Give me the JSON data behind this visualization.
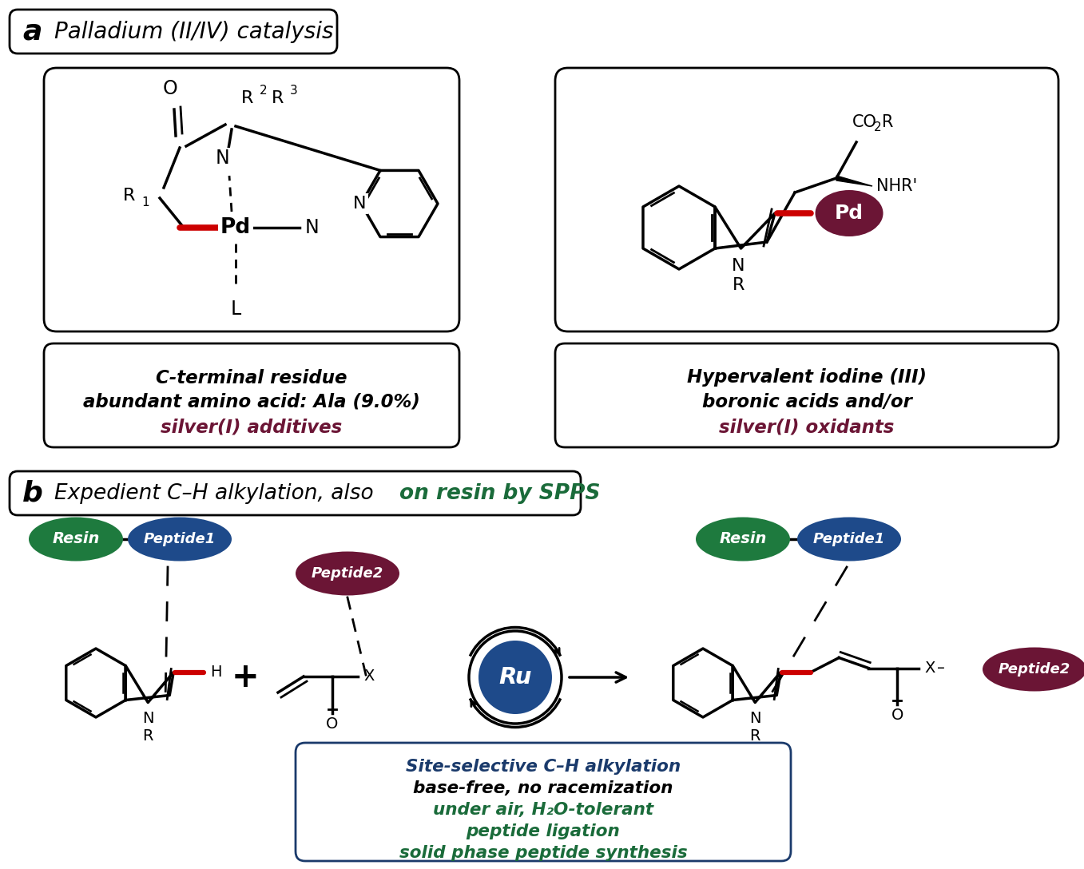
{
  "bg_color": "#ffffff",
  "panel_a_label": "a",
  "panel_a_title": "Palladium (II/IV) catalysis",
  "panel_b_label": "b",
  "panel_b_title_black": "Expedient C–H alkylation, also ",
  "panel_b_title_green": "on resin by SPPS",
  "box1_text_line1": "C-terminal residue",
  "box1_text_line2": "abundant amino acid: Ala (9.0%)",
  "box1_text_line3": "silver(I) additives",
  "box2_text_line1": "Hypervalent iodine (III)",
  "box2_text_line2": "boronic acids and/or",
  "box2_text_line3": "silver(I) oxidants",
  "box3_text_line1": "Site-selective C–H alkylation",
  "box3_text_line2": "base-free, no racemization",
  "box3_text_line3": "under air, H₂O-tolerant",
  "box3_text_line4": "peptide ligation",
  "box3_text_line5": "solid phase peptide synthesis",
  "color_red": "#cc0000",
  "color_purple_dark": "#6b1535",
  "color_green_dark": "#1a6b3a",
  "color_blue_dark": "#1a3a6b",
  "color_black": "#000000",
  "color_white": "#ffffff",
  "resin_color": "#1e7a3e",
  "peptide1_color": "#1e4a8a",
  "peptide2_color": "#6b1535",
  "ru_color": "#1e4a8a"
}
